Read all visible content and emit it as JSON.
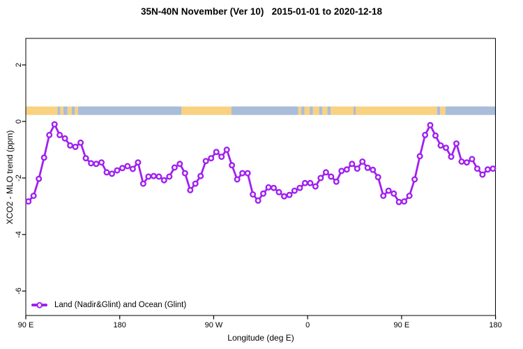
{
  "title": "35N-40N November (Ver 10)   2015-01-01 to 2020-12-18",
  "colors": {
    "line": "#A020F0",
    "marker_fill": "#FFFFFF",
    "land_band": "#F8D181",
    "ocean_band": "#A9BCD9",
    "axis": "#000000",
    "background": "#FFFFFF"
  },
  "legend": {
    "label": "Land (Nadir&Glint) and Ocean (Glint)"
  },
  "chart_data": {
    "type": "line",
    "title": "35N-40N November (Ver 10)   2015-01-01 to 2020-12-18",
    "xlabel": "Longitude (deg E)",
    "ylabel": "XCO2 - MLO trend (ppm)",
    "grid": false,
    "legend_position": "bottom-left-inside",
    "x_axis": {
      "min_deg": 90,
      "max_deg": 540,
      "wrapped_longitude": true,
      "ticks": [
        {
          "deg": 90,
          "label": "90 E"
        },
        {
          "deg": 180,
          "label": "180"
        },
        {
          "deg": 270,
          "label": "90 W"
        },
        {
          "deg": 360,
          "label": "0"
        },
        {
          "deg": 450,
          "label": "90 E"
        },
        {
          "deg": 540,
          "label": "180"
        }
      ]
    },
    "y_axis": {
      "min": -6.86,
      "max": 2.94,
      "ticks": [
        {
          "v": 2,
          "label": "2"
        },
        {
          "v": 0,
          "label": "0"
        },
        {
          "v": -2,
          "label": "-2"
        },
        {
          "v": -4,
          "label": "-4"
        },
        {
          "v": -6,
          "label": "-6"
        }
      ]
    },
    "series": [
      {
        "name": "Land (Nadir&Glint) and Ocean (Glint)",
        "marker": "open-circle",
        "x_start_deg": 92.5,
        "x_step_deg": 5,
        "values": [
          -2.83,
          -2.63,
          -2.03,
          -1.28,
          -0.48,
          -0.1,
          -0.48,
          -0.6,
          -0.85,
          -0.9,
          -0.75,
          -1.3,
          -1.48,
          -1.5,
          -1.45,
          -1.8,
          -1.85,
          -1.73,
          -1.65,
          -1.58,
          -1.68,
          -1.45,
          -2.2,
          -1.95,
          -1.93,
          -1.95,
          -2.08,
          -1.95,
          -1.63,
          -1.5,
          -1.83,
          -2.43,
          -2.2,
          -1.93,
          -1.4,
          -1.3,
          -1.08,
          -1.25,
          -1.0,
          -1.55,
          -2.05,
          -1.83,
          -1.83,
          -2.58,
          -2.8,
          -2.55,
          -2.33,
          -2.35,
          -2.5,
          -2.65,
          -2.6,
          -2.45,
          -2.35,
          -2.18,
          -2.18,
          -2.3,
          -2.0,
          -1.8,
          -1.95,
          -2.13,
          -1.75,
          -1.7,
          -1.5,
          -1.67,
          -1.42,
          -1.64,
          -1.71,
          -1.97,
          -2.63,
          -2.45,
          -2.55,
          -2.85,
          -2.83,
          -2.63,
          -2.05,
          -1.23,
          -0.48,
          -0.13,
          -0.5,
          -0.85,
          -0.93,
          -1.25,
          -0.78,
          -1.42,
          -1.45,
          -1.33,
          -1.67,
          -1.88,
          -1.7,
          -1.67
        ]
      }
    ],
    "band": {
      "description": "land/ocean surface-type strip",
      "y_top_value": 0.53,
      "y_bottom_value": 0.23,
      "segments": [
        {
          "from": 90,
          "to": 120.5,
          "type": "land"
        },
        {
          "from": 120.5,
          "to": 123,
          "type": "ocean"
        },
        {
          "from": 123,
          "to": 126,
          "type": "land"
        },
        {
          "from": 126,
          "to": 130,
          "type": "ocean"
        },
        {
          "from": 130,
          "to": 134,
          "type": "land"
        },
        {
          "from": 134,
          "to": 137,
          "type": "ocean"
        },
        {
          "from": 137,
          "to": 140,
          "type": "land"
        },
        {
          "from": 140,
          "to": 239,
          "type": "ocean"
        },
        {
          "from": 239,
          "to": 287,
          "type": "land"
        },
        {
          "from": 287,
          "to": 351,
          "type": "ocean"
        },
        {
          "from": 351,
          "to": 354,
          "type": "land"
        },
        {
          "from": 354,
          "to": 357,
          "type": "ocean"
        },
        {
          "from": 357,
          "to": 362,
          "type": "land"
        },
        {
          "from": 362,
          "to": 365,
          "type": "ocean"
        },
        {
          "from": 365,
          "to": 371,
          "type": "land"
        },
        {
          "from": 371,
          "to": 374,
          "type": "ocean"
        },
        {
          "from": 374,
          "to": 379,
          "type": "land"
        },
        {
          "from": 379,
          "to": 382,
          "type": "ocean"
        },
        {
          "from": 382,
          "to": 404,
          "type": "land"
        },
        {
          "from": 404,
          "to": 406,
          "type": "ocean"
        },
        {
          "from": 406,
          "to": 484,
          "type": "land"
        },
        {
          "from": 484,
          "to": 487,
          "type": "ocean"
        },
        {
          "from": 487,
          "to": 492,
          "type": "land"
        },
        {
          "from": 492,
          "to": 540,
          "type": "ocean"
        }
      ]
    }
  }
}
